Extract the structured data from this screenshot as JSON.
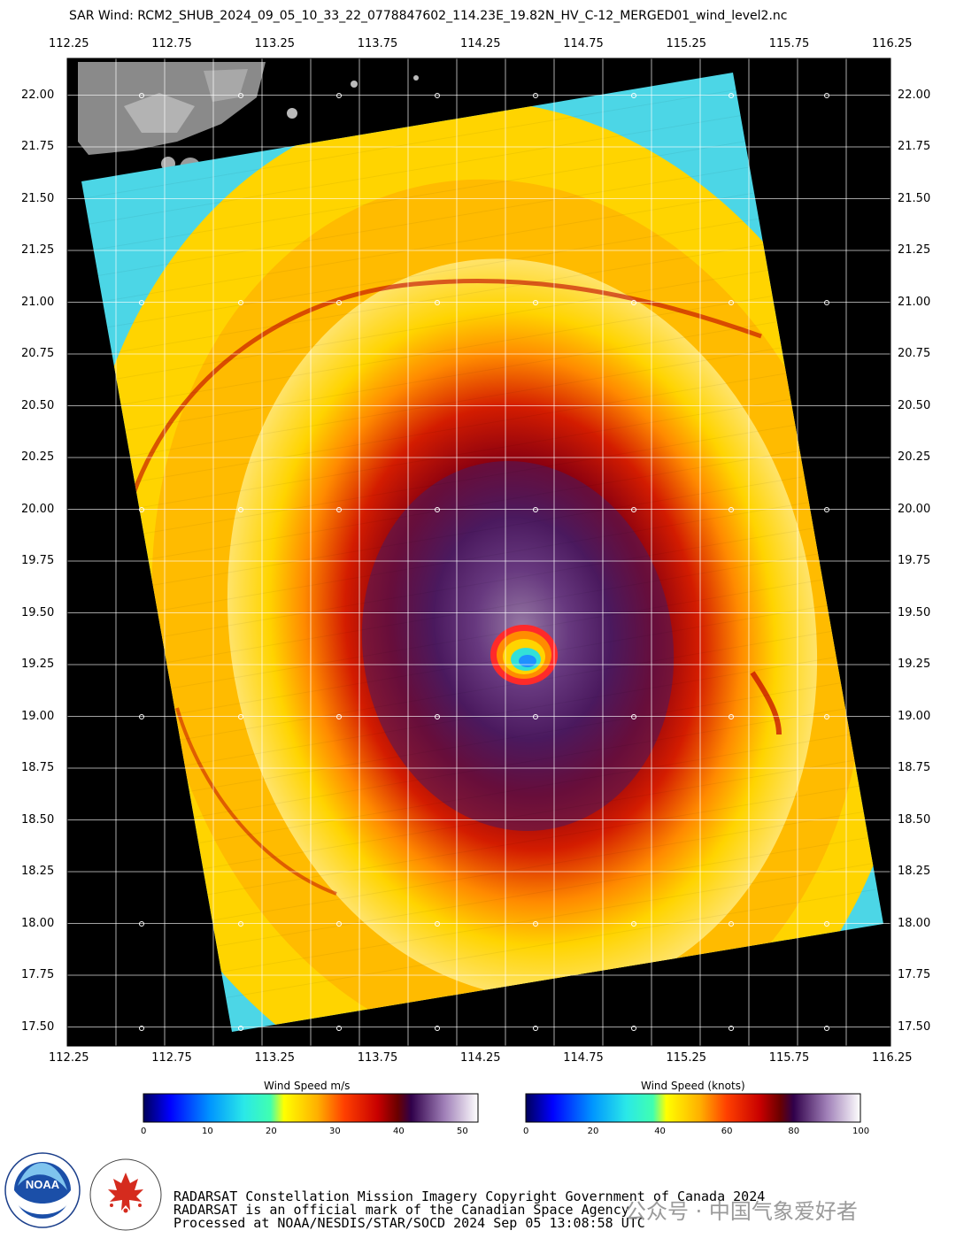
{
  "title": "SAR Wind: RCM2_SHUB_2024_09_05_10_33_22_0778847602_114.23E_19.82N_HV_C-12_MERGED01_wind_level2.nc",
  "axes": {
    "lon_labels": [
      "112.25",
      "112.75",
      "113.25",
      "113.75",
      "114.25",
      "114.75",
      "115.25",
      "115.75",
      "116.25"
    ],
    "lat_labels": [
      "22.00",
      "21.75",
      "21.50",
      "21.25",
      "21.00",
      "20.75",
      "20.50",
      "20.25",
      "20.00",
      "19.75",
      "19.50",
      "19.25",
      "19.00",
      "18.75",
      "18.50",
      "18.25",
      "18.00",
      "17.75",
      "17.50"
    ]
  },
  "colorbars": [
    {
      "title": "Wind Speed m/s",
      "ticks": [
        "0",
        "10",
        "20",
        "30",
        "40",
        "50"
      ]
    },
    {
      "title": "Wind Speed (knots)",
      "ticks": [
        "0",
        "20",
        "40",
        "60",
        "80",
        "100"
      ]
    }
  ],
  "colors": {
    "eye": "#1e90ff",
    "eyewall": "#f2eef8",
    "storm_core": "#4b1a5e",
    "inner": "#b00000",
    "outer": "#ffd400",
    "edge": "#4cd6e6",
    "background": "#000000"
  },
  "logos": {
    "noaa": "NOAA",
    "csa": "CANADIAN SPACE AGENCY · AGENCE SPATIALE CANADIENNE"
  },
  "credits": [
    "RADARSAT Constellation Mission Imagery Copyright Government of Canada 2024",
    "RADARSAT is an official mark of the Canadian Space Agency",
    "Processed at NOAA/NESDIS/STAR/SOCD 2024 Sep 05 13:08:58 UTC"
  ],
  "watermark": "公众号 · 中国气象爱好者"
}
